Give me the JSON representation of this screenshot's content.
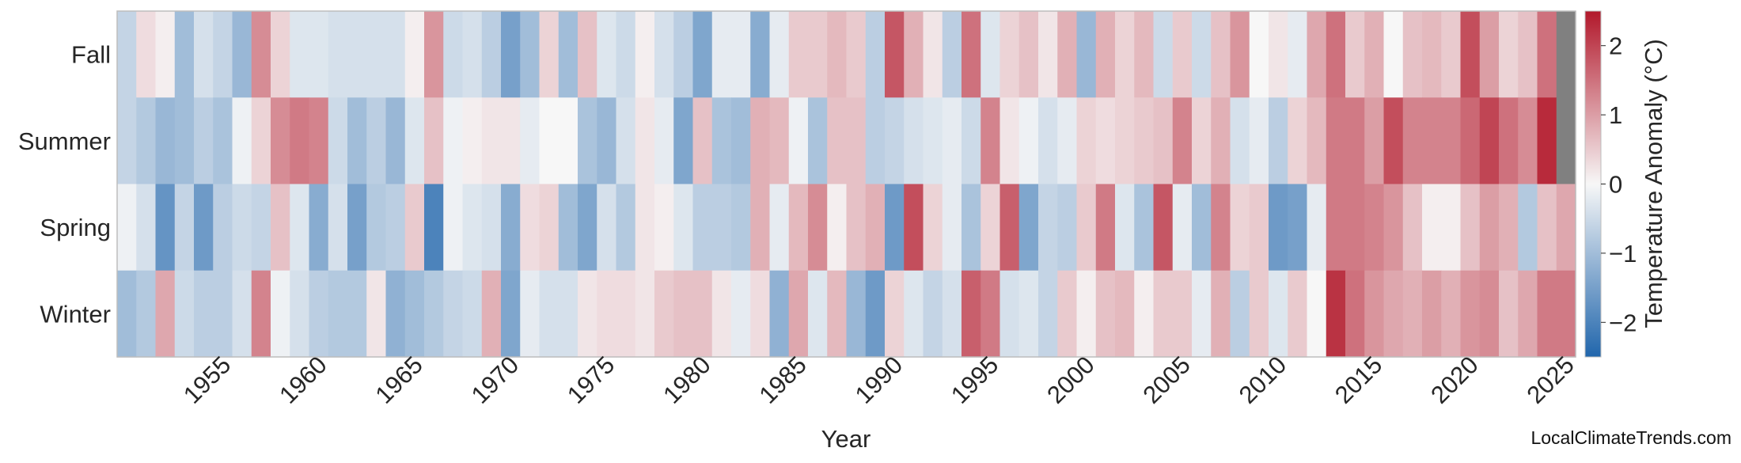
{
  "chart_data": {
    "type": "heatmap",
    "xlabel": "Year",
    "colorbar_label": "Temperature Anomaly (°C)",
    "colorbar_ticks": [
      -2,
      -1,
      0,
      1,
      2
    ],
    "colorbar_tick_labels": [
      "−2",
      "−1",
      "0",
      "1",
      "2"
    ],
    "value_range": [
      -2.5,
      2.5
    ],
    "colormap": [
      "#2166ac",
      "#f7f7f7",
      "#b2182b"
    ],
    "missing_color": "#808080",
    "x_ticks": [
      1955,
      1960,
      1965,
      1970,
      1975,
      1980,
      1985,
      1990,
      1995,
      2000,
      2005,
      2010,
      2015,
      2020,
      2025
    ],
    "x_tick_labels": [
      "1955",
      "1960",
      "1965",
      "1970",
      "1975",
      "1980",
      "1985",
      "1990",
      "1995",
      "2000",
      "2005",
      "2010",
      "2015",
      "2020",
      "2025"
    ],
    "years": [
      1950,
      1951,
      1952,
      1953,
      1954,
      1955,
      1956,
      1957,
      1958,
      1959,
      1960,
      1961,
      1962,
      1963,
      1964,
      1965,
      1966,
      1967,
      1968,
      1969,
      1970,
      1971,
      1972,
      1973,
      1974,
      1975,
      1976,
      1977,
      1978,
      1979,
      1980,
      1981,
      1982,
      1983,
      1984,
      1985,
      1986,
      1987,
      1988,
      1989,
      1990,
      1991,
      1992,
      1993,
      1994,
      1995,
      1996,
      1997,
      1998,
      1999,
      2000,
      2001,
      2002,
      2003,
      2004,
      2005,
      2006,
      2007,
      2008,
      2009,
      2010,
      2011,
      2012,
      2013,
      2014,
      2015,
      2016,
      2017,
      2018,
      2019,
      2020,
      2021,
      2022,
      2023,
      2024,
      2025
    ],
    "series": [
      {
        "name": "Fall",
        "values": [
          -0.6,
          0.3,
          0.1,
          -1.0,
          -0.4,
          -0.6,
          -1.1,
          1.2,
          0.4,
          -0.3,
          -0.3,
          -0.4,
          -0.4,
          -0.4,
          -0.4,
          0.1,
          1.1,
          -0.5,
          -0.4,
          -0.7,
          -1.5,
          -1.0,
          0.4,
          -1.0,
          0.6,
          -0.3,
          -0.5,
          0.1,
          -0.4,
          -0.7,
          -1.4,
          -0.2,
          -0.2,
          -1.3,
          -0.2,
          0.5,
          0.5,
          0.7,
          0.5,
          -0.7,
          1.8,
          0.8,
          0.2,
          -0.7,
          1.5,
          -0.3,
          0.4,
          0.6,
          0.2,
          0.8,
          -1.1,
          0.8,
          0.4,
          0.7,
          -0.5,
          0.5,
          -0.5,
          0.6,
          1.1,
          0.0,
          0.2,
          -0.2,
          0.9,
          1.5,
          0.5,
          0.8,
          0.0,
          0.6,
          0.7,
          0.5,
          1.9,
          1.0,
          0.4,
          0.6,
          1.5,
          null
        ]
      },
      {
        "name": "Summer",
        "values": [
          -0.6,
          -0.8,
          -1.1,
          -1.0,
          -0.7,
          -0.9,
          -0.1,
          0.4,
          1.2,
          1.4,
          1.3,
          -0.5,
          -1.0,
          -0.7,
          -1.1,
          -0.3,
          0.6,
          -0.1,
          0.1,
          0.2,
          0.2,
          -0.2,
          0.0,
          0.0,
          -0.9,
          -1.1,
          -0.4,
          0.2,
          -0.2,
          -1.4,
          0.6,
          -0.9,
          -1.0,
          0.8,
          0.7,
          -0.1,
          -0.9,
          0.6,
          0.6,
          -0.7,
          -0.6,
          -0.4,
          -0.3,
          -0.2,
          -0.5,
          1.3,
          0.2,
          -0.1,
          -0.4,
          -0.2,
          0.4,
          0.3,
          0.4,
          0.5,
          0.6,
          1.3,
          0.4,
          0.8,
          -0.4,
          -0.2,
          -0.7,
          0.4,
          0.7,
          1.4,
          1.4,
          1.0,
          1.9,
          1.3,
          1.3,
          1.3,
          1.6,
          2.0,
          1.5,
          1.2,
          2.3,
          null
        ]
      },
      {
        "name": "Spring",
        "values": [
          -0.1,
          -0.4,
          -1.7,
          -0.6,
          -1.6,
          -0.7,
          -0.5,
          -0.6,
          0.6,
          -0.3,
          -1.3,
          -0.4,
          -1.5,
          -0.8,
          -0.7,
          0.5,
          -2.0,
          -0.1,
          -0.3,
          -0.4,
          -1.3,
          0.3,
          0.4,
          -1.0,
          -1.4,
          -0.4,
          -0.8,
          0.2,
          0.1,
          -0.3,
          -0.7,
          -0.7,
          -0.8,
          0.8,
          -0.2,
          0.7,
          1.2,
          0.1,
          0.6,
          0.8,
          -1.6,
          1.9,
          0.4,
          -0.2,
          -0.9,
          0.4,
          1.7,
          -1.4,
          -0.6,
          -0.7,
          0.5,
          1.4,
          -0.3,
          -0.9,
          1.8,
          -0.2,
          -1.0,
          1.3,
          0.4,
          0.5,
          -1.6,
          -1.5,
          -0.2,
          1.4,
          1.4,
          1.3,
          1.1,
          0.6,
          0.1,
          0.1,
          0.6,
          1.0,
          0.8,
          -0.8,
          0.6,
          0.9
        ]
      },
      {
        "name": "Winter",
        "values": [
          -1.0,
          -0.8,
          0.9,
          -0.5,
          -0.7,
          -0.7,
          -0.4,
          1.3,
          -0.1,
          -0.4,
          -0.7,
          -0.8,
          -0.8,
          0.2,
          -1.2,
          -1.0,
          -0.8,
          -0.6,
          -0.5,
          0.8,
          -1.4,
          -0.2,
          -0.4,
          -0.4,
          0.2,
          0.3,
          0.3,
          0.2,
          0.5,
          0.6,
          0.6,
          0.2,
          -0.2,
          0.3,
          -1.2,
          0.9,
          -0.3,
          0.7,
          -1.1,
          -1.6,
          0.4,
          -0.3,
          -0.6,
          -0.4,
          1.7,
          1.4,
          -0.4,
          -0.3,
          -0.6,
          0.5,
          0.1,
          0.6,
          0.7,
          0.1,
          0.5,
          0.5,
          -0.2,
          0.8,
          -0.7,
          0.5,
          -0.3,
          0.5,
          0.0,
          2.2,
          1.5,
          1.1,
          0.9,
          0.8,
          1.0,
          0.8,
          1.1,
          1.2,
          0.6,
          0.9,
          1.4,
          1.4
        ]
      }
    ]
  },
  "credit": "LocalClimateTrends.com"
}
